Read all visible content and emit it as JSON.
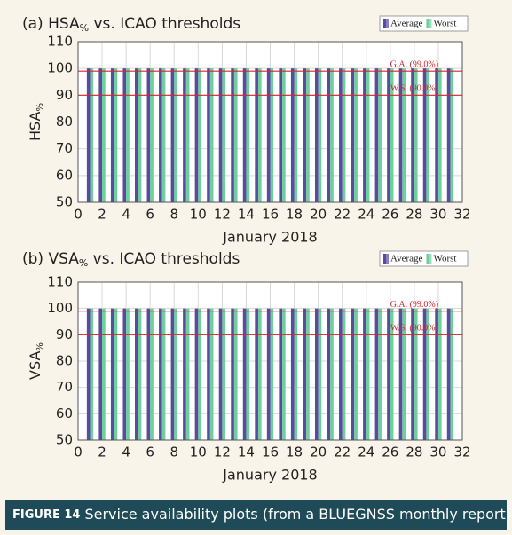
{
  "chart_data": [
    {
      "type": "bar",
      "title": {
        "prefix": "(a) HSA",
        "sub": "%",
        "suffix": " vs. ICAO thresholds"
      },
      "x_label": "January 2018",
      "y_label": {
        "main": "HSA",
        "sub": "%"
      },
      "x": [
        1,
        2,
        3,
        4,
        5,
        6,
        7,
        8,
        9,
        10,
        11,
        12,
        13,
        14,
        15,
        16,
        17,
        18,
        19,
        20,
        21,
        22,
        23,
        24,
        25,
        26,
        27,
        28,
        29,
        30,
        31
      ],
      "series": [
        {
          "name": "Average",
          "color": "#5a4aa0",
          "values": [
            100,
            100,
            100,
            100,
            100,
            100,
            100,
            100,
            100,
            100,
            100,
            100,
            100,
            100,
            100,
            100,
            100,
            100,
            100,
            100,
            100,
            100,
            100,
            100,
            100,
            100,
            100,
            100,
            100,
            100,
            100
          ]
        },
        {
          "name": "Worst",
          "color": "#6fcf9c",
          "values": [
            100,
            100,
            100,
            100,
            100,
            100,
            100,
            100,
            100,
            100,
            100,
            100,
            100,
            100,
            100,
            100,
            100,
            100,
            100,
            100,
            100,
            100,
            100,
            100,
            100,
            100,
            100,
            100,
            100,
            100,
            100
          ]
        }
      ],
      "thresholds": [
        {
          "value": 99,
          "label": "G.A. (99.0%)",
          "color": "#d9232e"
        },
        {
          "value": 90,
          "label": "W.S. (90.0%)",
          "color": "#d9232e"
        }
      ],
      "xlim": [
        0,
        32
      ],
      "xticks": [
        0,
        2,
        4,
        6,
        8,
        10,
        12,
        14,
        16,
        18,
        20,
        22,
        24,
        26,
        28,
        30,
        32
      ],
      "ylim": [
        50,
        110
      ],
      "yticks": [
        50,
        60,
        70,
        80,
        90,
        100,
        110
      ],
      "grid": true,
      "legend": "top-right"
    },
    {
      "type": "bar",
      "title": {
        "prefix": "(b) VSA",
        "sub": "%",
        "suffix": " vs. ICAO thresholds"
      },
      "x_label": "January 2018",
      "y_label": {
        "main": "VSA",
        "sub": "%"
      },
      "x": [
        1,
        2,
        3,
        4,
        5,
        6,
        7,
        8,
        9,
        10,
        11,
        12,
        13,
        14,
        15,
        16,
        17,
        18,
        19,
        20,
        21,
        22,
        23,
        24,
        25,
        26,
        27,
        28,
        29,
        30,
        31
      ],
      "series": [
        {
          "name": "Average",
          "color": "#5a4aa0",
          "values": [
            100,
            100,
            100,
            100,
            100,
            100,
            100,
            100,
            100,
            100,
            100,
            100,
            100,
            100,
            100,
            100,
            100,
            100,
            100,
            100,
            100,
            100,
            100,
            100,
            100,
            100,
            100,
            100,
            100,
            100,
            100
          ]
        },
        {
          "name": "Worst",
          "color": "#6fcf9c",
          "values": [
            100,
            100,
            100,
            100,
            100,
            100,
            100,
            100,
            100,
            100,
            100,
            100,
            100,
            100,
            100,
            100,
            100,
            100,
            100,
            100,
            100,
            100,
            100,
            100,
            100,
            100,
            100,
            100,
            100,
            100,
            100
          ]
        }
      ],
      "thresholds": [
        {
          "value": 99,
          "label": "G.A. (99.0%)",
          "color": "#d9232e"
        },
        {
          "value": 90,
          "label": "W.S. (90.0%)",
          "color": "#d9232e"
        }
      ],
      "xlim": [
        0,
        32
      ],
      "xticks": [
        0,
        2,
        4,
        6,
        8,
        10,
        12,
        14,
        16,
        18,
        20,
        22,
        24,
        26,
        28,
        30,
        32
      ],
      "ylim": [
        50,
        110
      ],
      "yticks": [
        50,
        60,
        70,
        80,
        90,
        100,
        110
      ],
      "grid": true,
      "legend": "top-right"
    }
  ],
  "caption": {
    "label": "FIGURE 14",
    "text": "Service availability plots (from a BLUEGNSS monthly report)"
  }
}
